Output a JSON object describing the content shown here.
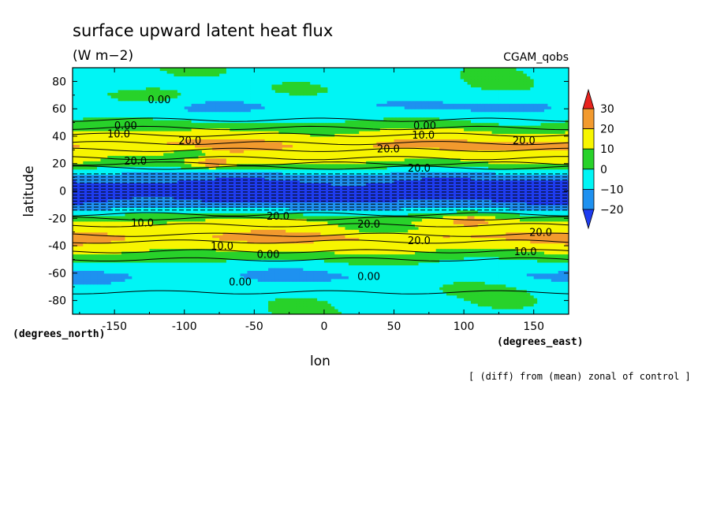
{
  "chart_data": {
    "type": "heatmap",
    "title": "surface upward latent heat flux",
    "subtitle": "(W m−2)",
    "experiment": "CGAM_qobs",
    "note": "[ (diff) from (mean) zonal of control ]",
    "xlabel": "lon",
    "ylabel": "latitude",
    "x_units": "(degrees_east)",
    "y_units": "(degrees_north)",
    "xlim": [
      -180,
      175
    ],
    "ylim": [
      -90,
      90
    ],
    "x_ticks": [
      -150,
      -100,
      -50,
      0,
      50,
      100,
      150
    ],
    "y_ticks": [
      80,
      60,
      40,
      20,
      0,
      -20,
      -40,
      -60,
      -80
    ],
    "grid": false,
    "colorbar": {
      "levels": [
        30,
        20,
        10,
        0,
        -10,
        -20
      ],
      "bands": [
        {
          "range": [
            30,
            40
          ],
          "color": "#e8231e"
        },
        {
          "range": [
            20,
            30
          ],
          "color": "#f29a2e"
        },
        {
          "range": [
            10,
            20
          ],
          "color": "#f7f500"
        },
        {
          "range": [
            0,
            10
          ],
          "color": "#28d22a"
        },
        {
          "range": [
            -10,
            0
          ],
          "color": "#00f5f5"
        },
        {
          "range": [
            -20,
            -10
          ],
          "color": "#1e91f0"
        },
        {
          "range": [
            -30,
            -20
          ],
          "color": "#1e3cf0"
        }
      ]
    },
    "contour_labels": [
      {
        "text": "0.00",
        "lon": -118,
        "lat": 67
      },
      {
        "text": "0.00",
        "lon": -142,
        "lat": 48
      },
      {
        "text": "10.0",
        "lon": -147,
        "lat": 42
      },
      {
        "text": "20.0",
        "lon": -96,
        "lat": 37
      },
      {
        "text": "0.00",
        "lon": 72,
        "lat": 48
      },
      {
        "text": "10.0",
        "lon": 71,
        "lat": 41
      },
      {
        "text": "20.0",
        "lon": 46,
        "lat": 31
      },
      {
        "text": "20.0",
        "lon": 143,
        "lat": 37
      },
      {
        "text": "20.0",
        "lon": -135,
        "lat": 22
      },
      {
        "text": "20.0",
        "lon": 68,
        "lat": 17
      },
      {
        "text": "20.0",
        "lon": -33,
        "lat": -18
      },
      {
        "text": "10.0",
        "lon": -130,
        "lat": -23
      },
      {
        "text": "20.0",
        "lon": 32,
        "lat": -24
      },
      {
        "text": "20.0",
        "lon": 68,
        "lat": -36
      },
      {
        "text": "20.0",
        "lon": 155,
        "lat": -30
      },
      {
        "text": "10.0",
        "lon": -73,
        "lat": -40
      },
      {
        "text": "0.00",
        "lon": -40,
        "lat": -46
      },
      {
        "text": "10.0",
        "lon": 144,
        "lat": -44
      },
      {
        "text": "0.00",
        "lon": 32,
        "lat": -62
      },
      {
        "text": "0.00",
        "lon": -60,
        "lat": -66
      }
    ]
  }
}
